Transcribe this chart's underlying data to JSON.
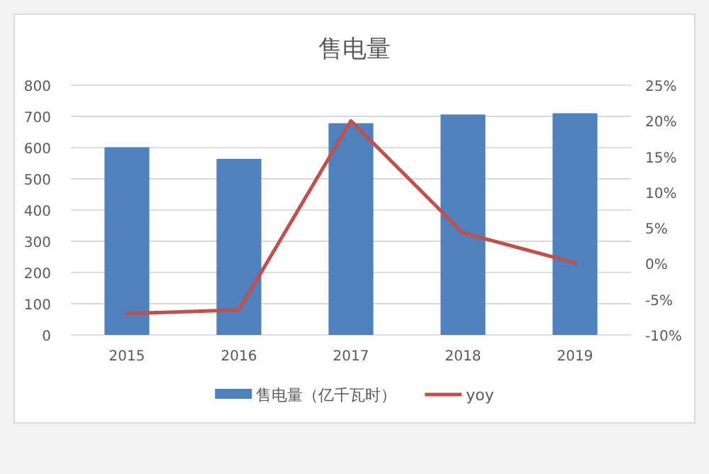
{
  "chart_data": {
    "type": "bar",
    "title": "售电量",
    "categories": [
      "2015",
      "2016",
      "2017",
      "2018",
      "2019"
    ],
    "series": [
      {
        "name": "售电量（亿千瓦时）",
        "color": "#4f81bd",
        "values": [
          601,
          564,
          678,
          706,
          710
        ]
      },
      {
        "name": "yoy",
        "type": "line",
        "axis": "y2",
        "color": "#c0504d",
        "values": [
          -7.0,
          -6.5,
          20,
          4.3,
          0.1
        ]
      }
    ],
    "ylim": [
      0,
      800
    ],
    "yticks": [
      0,
      100,
      200,
      300,
      400,
      500,
      600,
      700,
      800
    ],
    "y2lim": [
      -10,
      25
    ],
    "y2ticks": [
      {
        "value": -10,
        "label": "-10%"
      },
      {
        "value": -5,
        "label": "-5%"
      },
      {
        "value": 0,
        "label": "0%"
      },
      {
        "value": 5,
        "label": "5%"
      },
      {
        "value": 10,
        "label": "10%"
      },
      {
        "value": 15,
        "label": "15%"
      },
      {
        "value": 20,
        "label": "20%"
      },
      {
        "value": 25,
        "label": "25%"
      }
    ],
    "grid": "y",
    "legend": "bottom",
    "marker": "none",
    "line_style": "solid"
  }
}
